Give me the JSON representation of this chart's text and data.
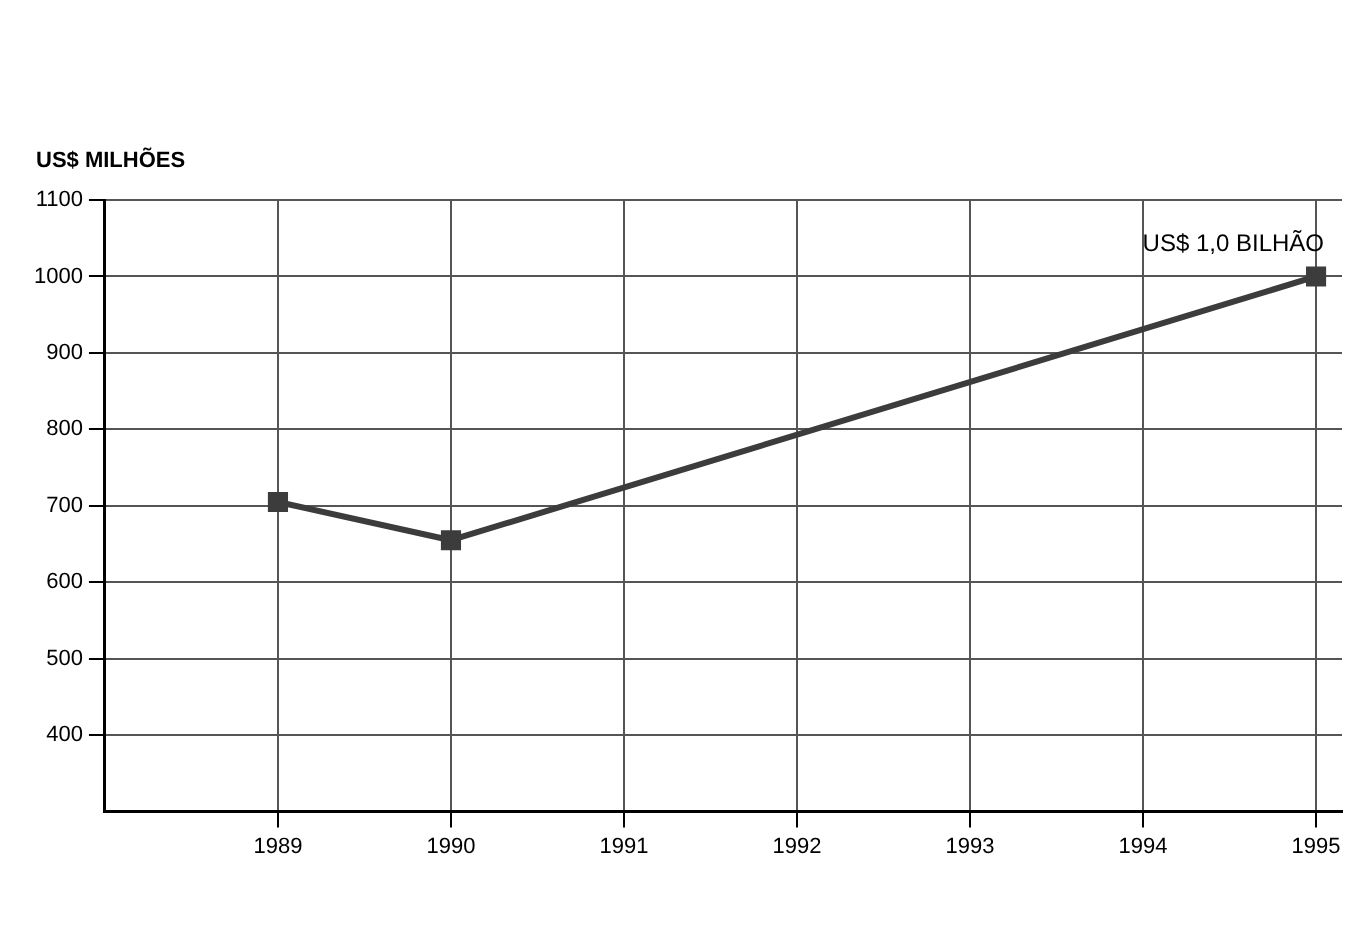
{
  "chart_data": {
    "type": "line",
    "ylabel": "US$ MILHÕES",
    "x": [
      1989,
      1990,
      1995
    ],
    "series": [
      {
        "color": "#3c3c3c",
        "values": [
          705,
          655,
          1000
        ]
      }
    ],
    "xlim": [
      1988,
      1995.15
    ],
    "xticks": [
      1989,
      1990,
      1991,
      1992,
      1993,
      1994,
      1995
    ],
    "ylim": [
      300,
      1100
    ],
    "yticks": [
      400,
      500,
      600,
      700,
      800,
      900,
      1000,
      1100
    ],
    "grid": true,
    "marker": "square",
    "line_style": "solid",
    "legend": false,
    "annotations": [
      {
        "text": "US$ 1,0 BILHÃO",
        "x": 1995,
        "y": 1000
      }
    ]
  }
}
